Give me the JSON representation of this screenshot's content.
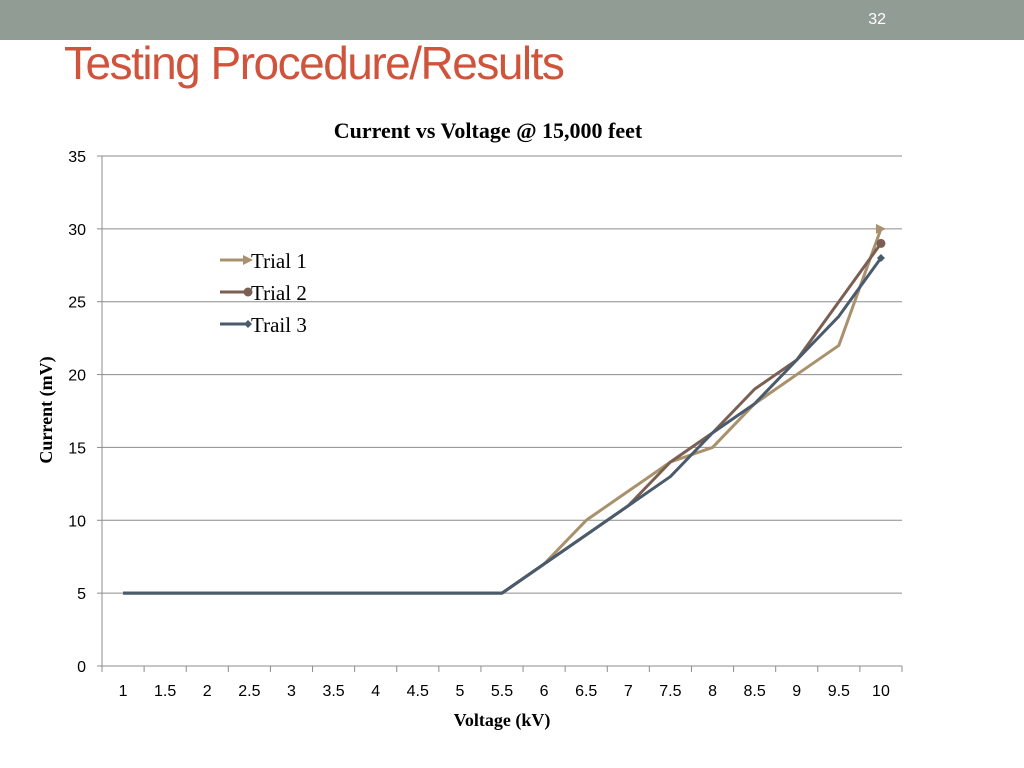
{
  "slide": {
    "number": "32",
    "title": "Testing Procedure/Results"
  },
  "chart_data": {
    "type": "line",
    "title": "Current vs Voltage @ 15,000 feet",
    "xlabel": "Voltage (kV)",
    "ylabel": "Current (mV)",
    "categories": [
      "1",
      "1.5",
      "2",
      "2.5",
      "3",
      "3.5",
      "4",
      "4.5",
      "5",
      "5.5",
      "6",
      "6.5",
      "7",
      "7.5",
      "8",
      "8.5",
      "9",
      "9.5",
      "10"
    ],
    "ylim": [
      0,
      35
    ],
    "yticks": [
      "0",
      "5",
      "10",
      "15",
      "20",
      "25",
      "30",
      "35"
    ],
    "grid": "horizontal",
    "legend_position": "upper-left",
    "series": [
      {
        "name": "Trial 1",
        "color": "#a8916c",
        "marker": "triangle",
        "values": [
          5,
          5,
          5,
          5,
          5,
          5,
          5,
          5,
          5,
          5,
          7,
          10,
          12,
          14,
          15,
          18,
          20,
          22,
          30
        ]
      },
      {
        "name": "Trial 2",
        "color": "#7b5f52",
        "marker": "circle",
        "values": [
          5,
          5,
          5,
          5,
          5,
          5,
          5,
          5,
          5,
          5,
          7,
          9,
          11,
          14,
          16,
          19,
          21,
          25,
          29
        ]
      },
      {
        "name": "Trail 3",
        "color": "#4a5b6c",
        "marker": "diamond",
        "values": [
          5,
          5,
          5,
          5,
          5,
          5,
          5,
          5,
          5,
          5,
          7,
          9,
          11,
          13,
          16,
          18,
          21,
          24,
          28
        ]
      }
    ]
  }
}
